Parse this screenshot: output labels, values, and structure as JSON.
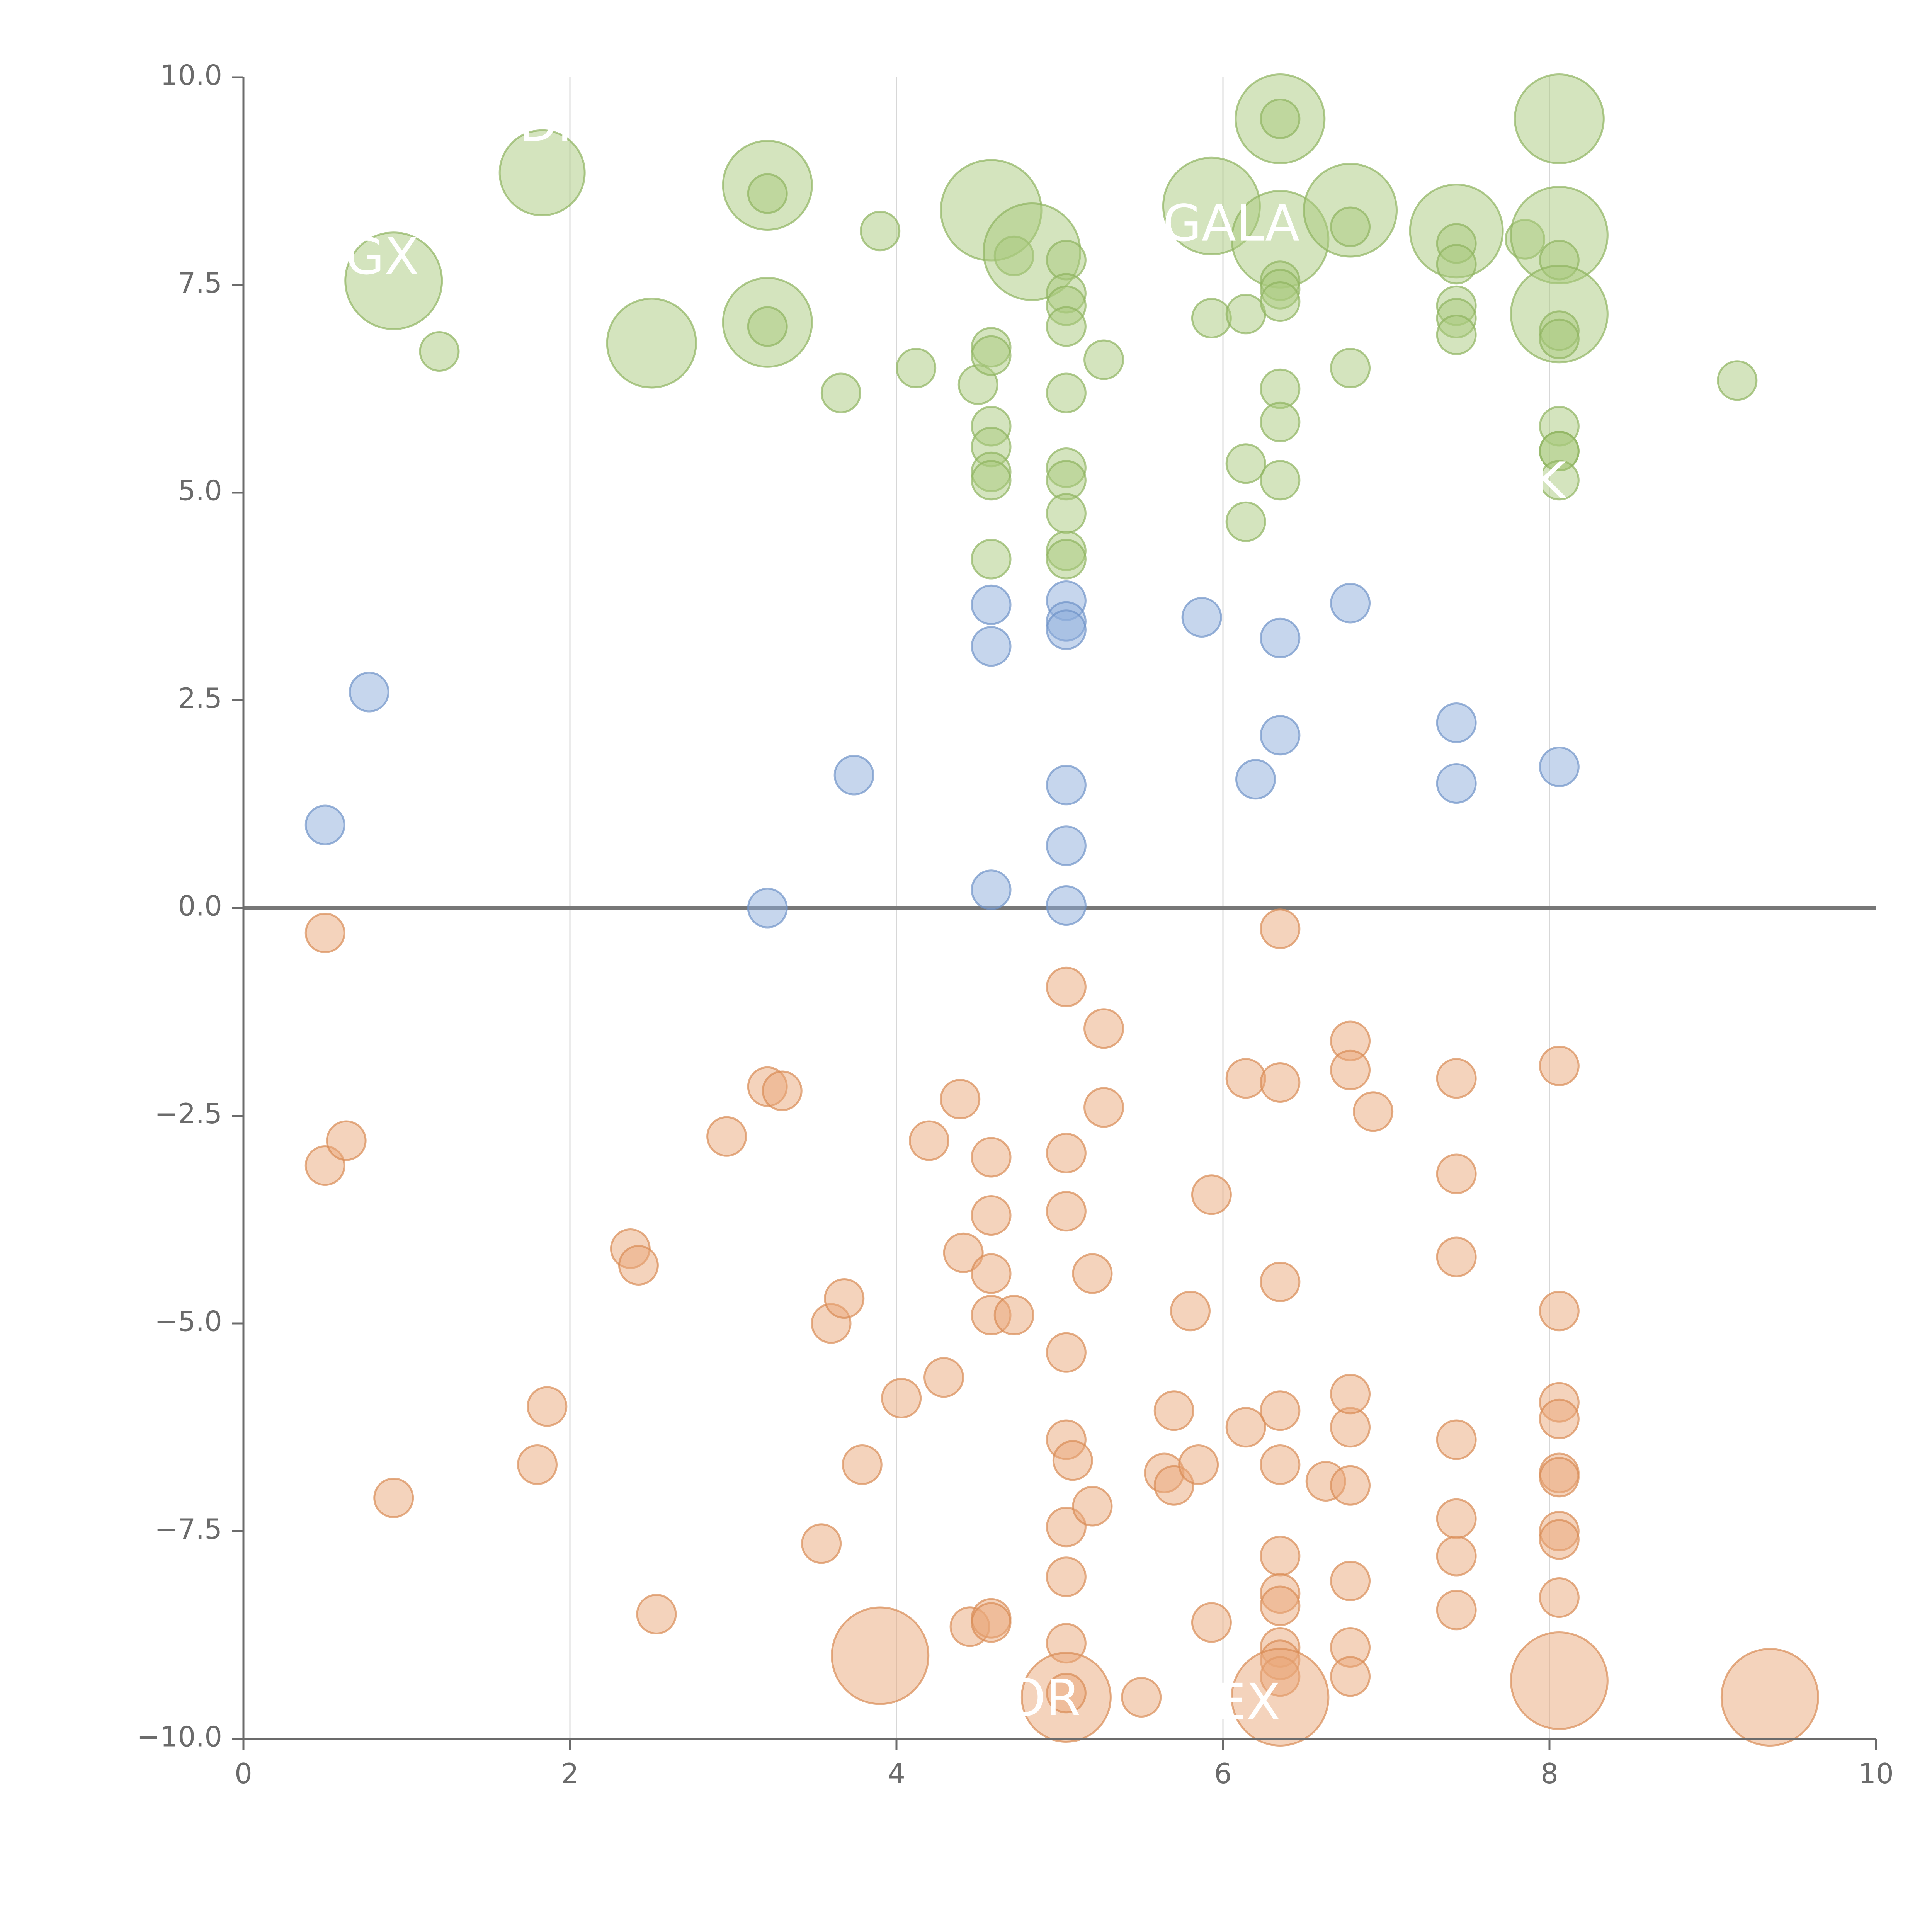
{
  "chart_data": {
    "type": "scatter",
    "title": "",
    "xlabel": "",
    "ylabel": "",
    "xlim": [
      0,
      10
    ],
    "ylim": [
      -10,
      10
    ],
    "xticks": [
      0,
      2,
      4,
      6,
      8,
      10
    ],
    "xtick_labels": [
      "0",
      "2",
      "4",
      "6",
      "8",
      "10"
    ],
    "yticks": [
      -10,
      -7.5,
      -5,
      -2.5,
      0,
      2.5,
      5,
      7.5,
      10
    ],
    "ytick_labels": [
      "−10.0",
      "−7.5",
      "−5.0",
      "−2.5",
      "0.0",
      "2.5",
      "5.0",
      "7.5",
      "10.0"
    ],
    "grid": "vertical",
    "zero_line": true,
    "colors": {
      "green": "#a9c97d",
      "blue": "#8eaedb",
      "orange": "#eaa779",
      "green_stroke": "#8fb35f",
      "blue_stroke": "#6f93c7",
      "orange_stroke": "#d98c55",
      "axis": "#6b6b6b",
      "grid": "#d7d7d7",
      "zero_line": "#777777"
    },
    "series": [
      {
        "color": "green",
        "points": [
          [
            0.92,
            7.55,
            2.5
          ],
          [
            1.83,
            8.85,
            2.2
          ],
          [
            1.2,
            6.7,
            1
          ],
          [
            2.5,
            6.8,
            2.3
          ],
          [
            3.21,
            8.7,
            2.3
          ],
          [
            3.21,
            8.6,
            1
          ],
          [
            3.21,
            7.05,
            2.3
          ],
          [
            3.21,
            7.0,
            1
          ],
          [
            3.66,
            6.2,
            1
          ],
          [
            3.9,
            8.15,
            1
          ],
          [
            4.12,
            6.5,
            1
          ],
          [
            4.5,
            6.3,
            1
          ],
          [
            4.58,
            6.75,
            1
          ],
          [
            4.58,
            6.65,
            1
          ],
          [
            4.58,
            5.8,
            1
          ],
          [
            4.58,
            5.55,
            1
          ],
          [
            4.58,
            5.25,
            1
          ],
          [
            4.58,
            5.15,
            1
          ],
          [
            4.58,
            4.2,
            1
          ],
          [
            4.58,
            8.4,
            2.6
          ],
          [
            4.72,
            7.85,
            1
          ],
          [
            4.83,
            7.9,
            2.5
          ],
          [
            5.04,
            7.8,
            1
          ],
          [
            5.04,
            7.4,
            1
          ],
          [
            5.04,
            7.25,
            1
          ],
          [
            5.04,
            7.0,
            1
          ],
          [
            5.04,
            6.2,
            1
          ],
          [
            5.04,
            5.3,
            1
          ],
          [
            5.04,
            5.15,
            1
          ],
          [
            5.04,
            4.75,
            1
          ],
          [
            5.04,
            4.3,
            1
          ],
          [
            5.04,
            4.2,
            1
          ],
          [
            5.27,
            6.6,
            1
          ],
          [
            5.93,
            8.45,
            2.5
          ],
          [
            5.93,
            7.1,
            1
          ],
          [
            6.14,
            7.15,
            1
          ],
          [
            6.14,
            5.35,
            1
          ],
          [
            6.14,
            4.65,
            1
          ],
          [
            6.35,
            9.5,
            2.3
          ],
          [
            6.35,
            9.5,
            1
          ],
          [
            6.35,
            8.05,
            2.5
          ],
          [
            6.35,
            7.55,
            1
          ],
          [
            6.35,
            7.45,
            1
          ],
          [
            6.35,
            7.3,
            1
          ],
          [
            6.35,
            6.25,
            1
          ],
          [
            6.35,
            5.85,
            1
          ],
          [
            6.35,
            5.15,
            1
          ],
          [
            6.78,
            8.4,
            2.4
          ],
          [
            6.78,
            8.2,
            1
          ],
          [
            6.78,
            6.5,
            1
          ],
          [
            7.43,
            8.15,
            2.4
          ],
          [
            7.43,
            8.0,
            1
          ],
          [
            7.43,
            7.75,
            1
          ],
          [
            7.43,
            7.25,
            1
          ],
          [
            7.43,
            7.1,
            1
          ],
          [
            7.43,
            6.9,
            1
          ],
          [
            7.85,
            8.05,
            1
          ],
          [
            8.06,
            9.5,
            2.3
          ],
          [
            8.06,
            8.1,
            2.5
          ],
          [
            8.06,
            7.8,
            1
          ],
          [
            8.06,
            7.15,
            2.5
          ],
          [
            8.06,
            6.95,
            1
          ],
          [
            8.06,
            6.85,
            1
          ],
          [
            8.06,
            5.8,
            1
          ],
          [
            8.06,
            5.5,
            1
          ],
          [
            8.06,
            5.5,
            1
          ],
          [
            8.06,
            5.15,
            1
          ],
          [
            9.15,
            6.35,
            1
          ]
        ]
      },
      {
        "color": "blue",
        "points": [
          [
            0.5,
            1.0,
            1
          ],
          [
            0.77,
            2.6,
            1
          ],
          [
            3.21,
            0.0,
            1
          ],
          [
            3.74,
            1.6,
            1
          ],
          [
            4.58,
            3.65,
            1
          ],
          [
            4.58,
            3.15,
            1
          ],
          [
            4.58,
            0.22,
            1
          ],
          [
            5.04,
            3.7,
            1
          ],
          [
            5.04,
            3.45,
            1
          ],
          [
            5.04,
            3.35,
            1
          ],
          [
            5.04,
            1.48,
            1
          ],
          [
            5.04,
            0.75,
            1
          ],
          [
            5.04,
            0.03,
            1
          ],
          [
            5.87,
            3.5,
            1
          ],
          [
            6.2,
            1.55,
            1
          ],
          [
            6.35,
            3.25,
            1
          ],
          [
            6.35,
            2.08,
            1
          ],
          [
            6.78,
            3.67,
            1
          ],
          [
            7.43,
            2.23,
            1
          ],
          [
            7.43,
            1.5,
            1
          ],
          [
            8.06,
            1.7,
            1
          ]
        ]
      },
      {
        "color": "orange",
        "points": [
          [
            0.5,
            -0.3,
            1
          ],
          [
            0.5,
            -3.1,
            1
          ],
          [
            0.63,
            -2.8,
            1
          ],
          [
            0.92,
            -7.1,
            1
          ],
          [
            1.8,
            -6.7,
            1
          ],
          [
            1.86,
            -6.0,
            1
          ],
          [
            2.37,
            -4.1,
            1
          ],
          [
            2.42,
            -4.3,
            1
          ],
          [
            2.53,
            -8.5,
            1
          ],
          [
            2.96,
            -2.75,
            1
          ],
          [
            3.21,
            -2.15,
            1
          ],
          [
            3.3,
            -2.2,
            1
          ],
          [
            3.54,
            -7.65,
            1
          ],
          [
            3.6,
            -5.0,
            1
          ],
          [
            3.68,
            -4.7,
            1
          ],
          [
            3.79,
            -6.7,
            1
          ],
          [
            3.9,
            -9.0,
            2.5
          ],
          [
            4.03,
            -5.9,
            1
          ],
          [
            4.2,
            -2.8,
            1
          ],
          [
            4.29,
            -5.65,
            1
          ],
          [
            4.39,
            -2.3,
            1
          ],
          [
            4.41,
            -4.15,
            1
          ],
          [
            4.45,
            -8.65,
            1
          ],
          [
            4.58,
            -3.0,
            1
          ],
          [
            4.58,
            -3.7,
            1
          ],
          [
            4.58,
            -4.4,
            1
          ],
          [
            4.58,
            -4.9,
            1
          ],
          [
            4.58,
            -8.55,
            1
          ],
          [
            4.58,
            -8.6,
            1
          ],
          [
            4.72,
            -4.9,
            1
          ],
          [
            5.04,
            -0.95,
            1
          ],
          [
            5.04,
            -2.95,
            1
          ],
          [
            5.04,
            -3.65,
            1
          ],
          [
            5.04,
            -5.35,
            1
          ],
          [
            5.04,
            -6.4,
            1
          ],
          [
            5.04,
            -7.45,
            1
          ],
          [
            5.04,
            -8.05,
            1
          ],
          [
            5.04,
            -8.85,
            1
          ],
          [
            5.04,
            -9.5,
            2.3
          ],
          [
            5.04,
            -9.45,
            1
          ],
          [
            5.08,
            -6.65,
            1
          ],
          [
            5.2,
            -4.4,
            1
          ],
          [
            5.2,
            -7.2,
            1
          ],
          [
            5.27,
            -1.45,
            1
          ],
          [
            5.27,
            -2.4,
            1
          ],
          [
            5.5,
            -9.5,
            1
          ],
          [
            5.64,
            -6.8,
            1
          ],
          [
            5.7,
            -6.95,
            1
          ],
          [
            5.7,
            -6.05,
            1
          ],
          [
            5.8,
            -4.85,
            1
          ],
          [
            5.85,
            -6.7,
            1
          ],
          [
            5.93,
            -3.45,
            1
          ],
          [
            5.93,
            -8.6,
            1
          ],
          [
            6.14,
            -2.05,
            1
          ],
          [
            6.14,
            -6.25,
            1
          ],
          [
            6.35,
            -0.25,
            1
          ],
          [
            6.35,
            -2.1,
            1
          ],
          [
            6.35,
            -4.5,
            1
          ],
          [
            6.35,
            -6.05,
            1
          ],
          [
            6.35,
            -6.7,
            1
          ],
          [
            6.35,
            -7.8,
            1
          ],
          [
            6.35,
            -8.25,
            1
          ],
          [
            6.35,
            -8.4,
            1
          ],
          [
            6.35,
            -8.9,
            1
          ],
          [
            6.35,
            -9.05,
            1
          ],
          [
            6.35,
            -9.25,
            1
          ],
          [
            6.35,
            -9.5,
            2.5
          ],
          [
            6.63,
            -6.9,
            1
          ],
          [
            6.78,
            -1.6,
            1
          ],
          [
            6.78,
            -1.95,
            1
          ],
          [
            6.78,
            -6.25,
            1
          ],
          [
            6.78,
            -5.85,
            1
          ],
          [
            6.78,
            -6.95,
            1
          ],
          [
            6.78,
            -8.1,
            1
          ],
          [
            6.78,
            -8.9,
            1
          ],
          [
            6.78,
            -9.25,
            1
          ],
          [
            6.92,
            -2.45,
            1
          ],
          [
            7.43,
            -2.05,
            1
          ],
          [
            7.43,
            -3.2,
            1
          ],
          [
            7.43,
            -4.2,
            1
          ],
          [
            7.43,
            -6.4,
            1
          ],
          [
            7.43,
            -7.35,
            1
          ],
          [
            7.43,
            -7.8,
            1
          ],
          [
            7.43,
            -8.45,
            1
          ],
          [
            8.06,
            -1.9,
            1
          ],
          [
            8.06,
            -4.85,
            1
          ],
          [
            8.06,
            -5.95,
            1
          ],
          [
            8.06,
            -6.15,
            1
          ],
          [
            8.06,
            -6.8,
            1
          ],
          [
            8.06,
            -6.85,
            1
          ],
          [
            8.06,
            -7.5,
            1
          ],
          [
            8.06,
            -7.6,
            1
          ],
          [
            8.06,
            -8.3,
            1
          ],
          [
            8.06,
            -9.3,
            2.5
          ],
          [
            9.35,
            -9.5,
            2.5
          ]
        ]
      }
    ],
    "annotations": [
      {
        "text": "GX",
        "x": 0.85,
        "y": 7.8
      },
      {
        "text": "DI",
        "x": 1.85,
        "y": 9.4
      },
      {
        "text": "GALA",
        "x": 6.05,
        "y": 8.2
      },
      {
        "text": "K",
        "x": 8.0,
        "y": 5.1
      },
      {
        "text": "OR",
        "x": 4.9,
        "y": -9.55
      },
      {
        "text": "EX",
        "x": 6.15,
        "y": -9.6
      }
    ]
  }
}
